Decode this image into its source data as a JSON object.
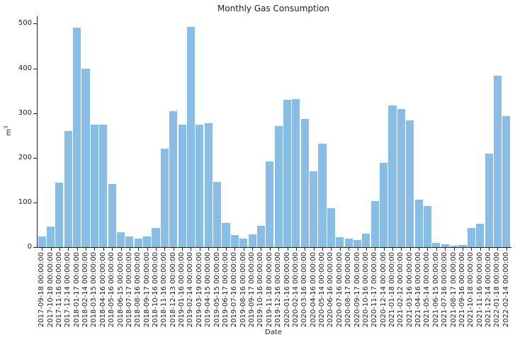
{
  "chart_data": {
    "type": "bar",
    "title": "Monthly Gas Consumption",
    "xlabel": "Date",
    "ylabel": "m³",
    "ylabel_base": "m",
    "ylabel_sup": "3",
    "ylim": [
      0,
      516
    ],
    "yticks": [
      0,
      100,
      200,
      300,
      400,
      500
    ],
    "grid": false,
    "legend": null,
    "bar_color": "#88bde6",
    "categories": [
      "2017-09-18 00:00:00",
      "2017-10-18 00:00:00",
      "2017-11-16 00:00:00",
      "2017-12-14 00:00:00",
      "2018-01-17 00:00:00",
      "2018-02-14 00:00:00",
      "2018-03-15 00:00:00",
      "2018-04-16 00:00:00",
      "2018-05-16 00:00:00",
      "2018-06-15 00:00:00",
      "2018-07-17 00:00:00",
      "2018-08-16 00:00:00",
      "2018-09-17 00:00:00",
      "2018-10-16 00:00:00",
      "2018-11-16 00:00:00",
      "2018-12-13 00:00:00",
      "2019-01-16 00:00:00",
      "2019-02-14 00:00:00",
      "2019-03-19 00:00:00",
      "2019-04-15 00:00:00",
      "2019-05-15 00:00:00",
      "2019-06-17 00:00:00",
      "2019-07-16 00:00:00",
      "2019-08-16 00:00:00",
      "2019-09-17 00:00:00",
      "2019-10-16 00:00:00",
      "2019-11-18 00:00:00",
      "2019-12-16 00:00:00",
      "2020-01-16 00:00:00",
      "2020-02-14 00:00:00",
      "2020-03-16 00:00:00",
      "2020-04-16 00:00:00",
      "2020-05-14 00:00:00",
      "2020-06-16 00:00:00",
      "2020-07-16 00:00:00",
      "2020-08-17 00:00:00",
      "2020-09-17 00:00:00",
      "2020-10-16 00:00:00",
      "2020-11-17 00:00:00",
      "2020-12-14 00:00:00",
      "2021-01-18 00:00:00",
      "2021-02-12 00:00:00",
      "2021-03-16 00:00:00",
      "2021-04-16 00:00:00",
      "2021-05-14 00:00:00",
      "2021-06-15 00:00:00",
      "2021-07-16 00:00:00",
      "2021-08-17 00:00:00",
      "2021-09-16 00:00:00",
      "2021-10-18 00:00:00",
      "2021-11-16 00:00:00",
      "2021-12-14 00:00:00",
      "2022-01-18 00:00:00",
      "2022-02-14 00:00:00"
    ],
    "values": [
      24,
      46,
      144,
      260,
      491,
      399,
      274,
      274,
      141,
      34,
      24,
      20,
      24,
      43,
      220,
      304,
      274,
      493,
      274,
      277,
      146,
      54,
      27,
      20,
      29,
      48,
      192,
      271,
      329,
      331,
      287,
      170,
      231,
      87,
      22,
      20,
      17,
      30,
      103,
      189,
      317,
      309,
      284,
      106,
      92,
      10,
      7,
      4,
      5,
      43,
      52,
      209,
      383,
      293
    ]
  }
}
